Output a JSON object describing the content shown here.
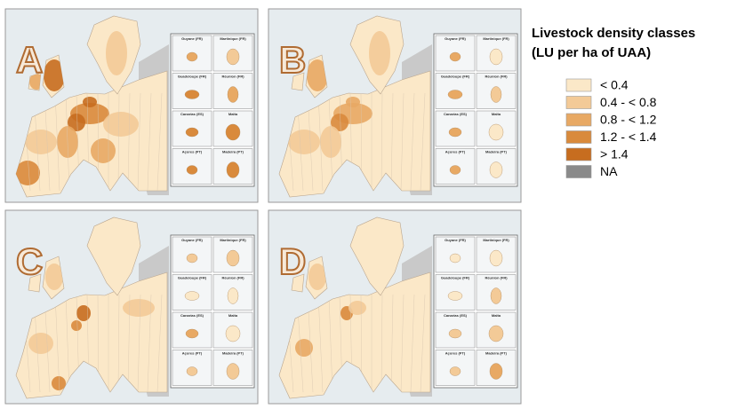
{
  "panels": [
    {
      "label": "A"
    },
    {
      "label": "B"
    },
    {
      "label": "C"
    },
    {
      "label": "D"
    }
  ],
  "inset_labels": [
    "Guyane (FR)",
    "Martinique (FR)",
    "Guadeloupe (FR)",
    "Réunion (FR)",
    "Canarias (ES)",
    "Malta",
    "Açores (PT)",
    "Madeira (PT)"
  ],
  "legend": {
    "title": [
      "Livestock density classes",
      "(LU per ha of UAA)"
    ],
    "items": [
      {
        "label": "< 0.4",
        "color": "#fbe8c8"
      },
      {
        "label": "0.4 - < 0.8",
        "color": "#f3ca97"
      },
      {
        "label": "0.8 - < 1.2",
        "color": "#e8a964"
      },
      {
        "label": "1.2 - < 1.4",
        "color": "#d98a3c"
      },
      {
        "label": "> 1.4",
        "color": "#c76d1f"
      },
      {
        "label": "NA",
        "color": "#8a8a8a"
      }
    ]
  }
}
